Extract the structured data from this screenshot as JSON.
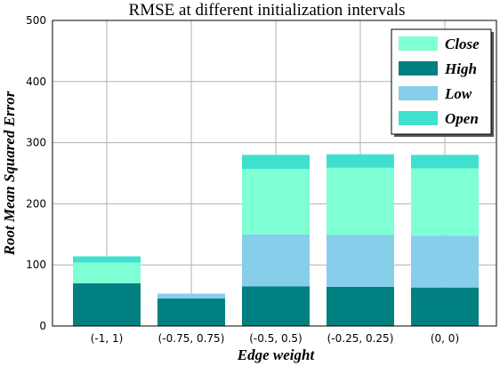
{
  "chart_data": {
    "type": "bar",
    "stacked": true,
    "title": "RMSE at different initialization intervals",
    "xlabel": "Edge weight",
    "ylabel": "Root Mean Squared Error",
    "categories": [
      "(-1, 1)",
      "(-0.75, 0.75)",
      "(-0.5, 0.5)",
      "(-0.25, 0.25)",
      "(0, 0)"
    ],
    "ylim": [
      0,
      500
    ],
    "yticks": [
      0,
      100,
      200,
      300,
      400,
      500
    ],
    "grid": true,
    "legend_position": "top-right",
    "series": [
      {
        "name": "High",
        "color": "#008080",
        "values": [
          70,
          45,
          65,
          64,
          63
        ]
      },
      {
        "name": "Low",
        "color": "#87ceeb",
        "values": [
          0,
          8,
          85,
          85,
          85
        ]
      },
      {
        "name": "Close",
        "color": "#7fffd4",
        "values": [
          34,
          0,
          107,
          110,
          110
        ]
      },
      {
        "name": "Open",
        "color": "#40e0d0",
        "values": [
          10,
          0,
          23,
          22,
          22
        ]
      }
    ],
    "legend_order": [
      "Close",
      "High",
      "Low",
      "Open"
    ]
  }
}
